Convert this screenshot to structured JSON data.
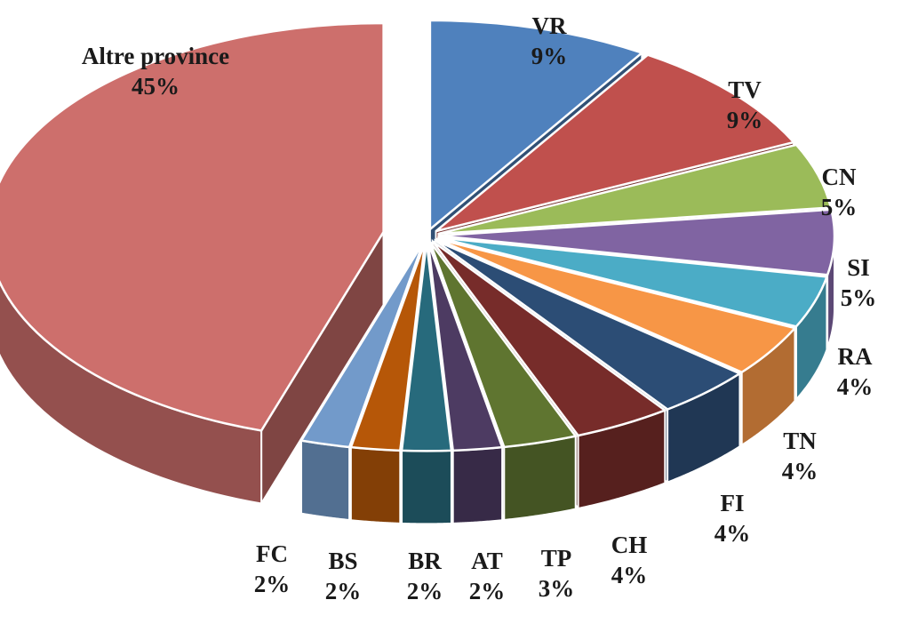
{
  "chart_data": {
    "type": "pie",
    "style": "3d-exploded",
    "title": "",
    "categories": [
      "VR",
      "TV",
      "CN",
      "SI",
      "RA",
      "TN",
      "FI",
      "CH",
      "TP",
      "AT",
      "BR",
      "BS",
      "FC",
      "Altre province"
    ],
    "values": [
      9,
      9,
      5,
      5,
      4,
      4,
      4,
      4,
      3,
      2,
      2,
      2,
      2,
      45
    ],
    "labels": [
      "9%",
      "9%",
      "5%",
      "5%",
      "4%",
      "4%",
      "4%",
      "4%",
      "3%",
      "2%",
      "2%",
      "2%",
      "2%",
      "45%"
    ],
    "colors": [
      "#4f81bd",
      "#c0504d",
      "#9bbb59",
      "#8064a2",
      "#4bacc6",
      "#f79646",
      "#2c4d75",
      "#772c2a",
      "#5f7530",
      "#4d3b62",
      "#276a7c",
      "#b65708",
      "#729aca",
      "#cd6f6c"
    ],
    "legend": "none"
  }
}
